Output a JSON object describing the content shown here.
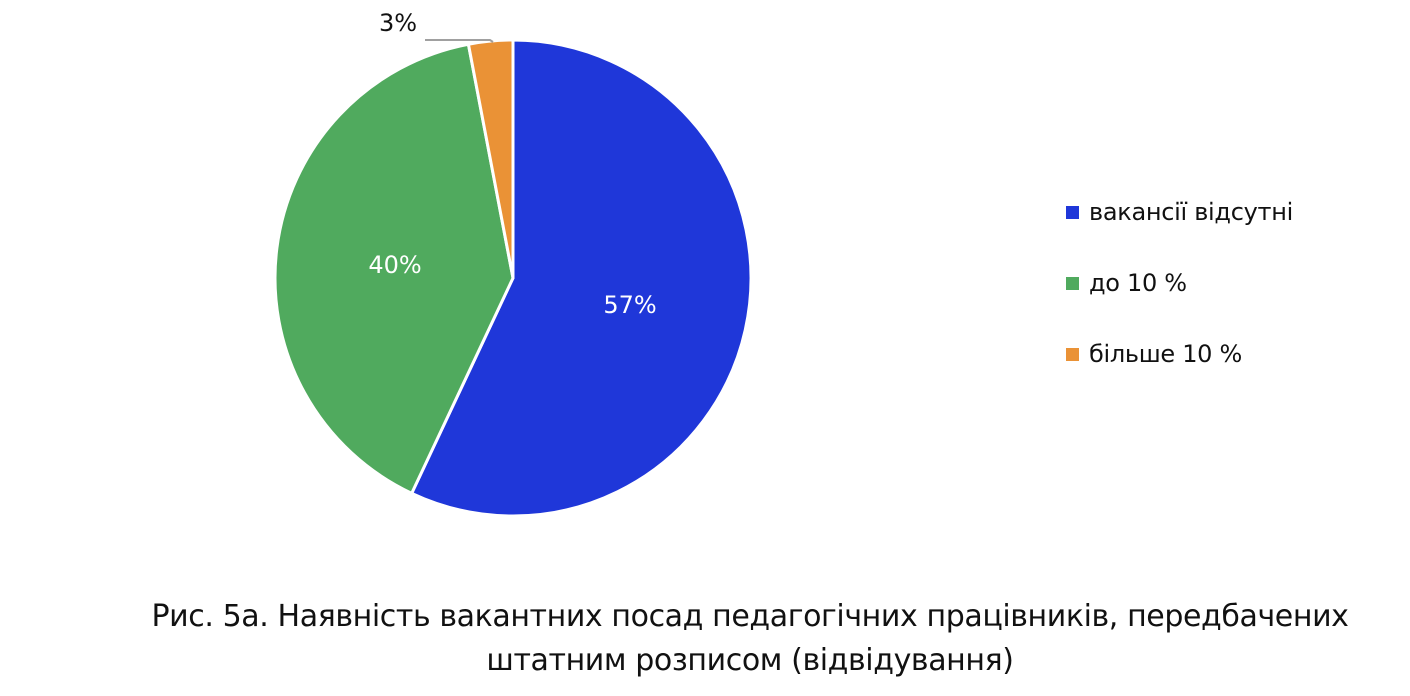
{
  "chart_data": {
    "type": "pie",
    "title": "Рис. 5а. Наявність вакантних посад педагогічних працівників, передбачених штатним розписом (відвідування)",
    "categories": [
      "вакансії відсутні",
      "до 10 %",
      "більше 10 %"
    ],
    "values": [
      57,
      40,
      3
    ],
    "data_labels": [
      "57%",
      "40%",
      "3%"
    ],
    "colors": [
      "#1f37d9",
      "#50aa5e",
      "#ea9236"
    ],
    "start_angle": "12 o'clock, clockwise",
    "legend_position": "right"
  },
  "legend": {
    "items": [
      {
        "label": "вакансії відсутні",
        "color": "#1f37d9"
      },
      {
        "label": "до 10 %",
        "color": "#50aa5e"
      },
      {
        "label": "більше 10 %",
        "color": "#ea9236"
      }
    ]
  },
  "caption": {
    "line1": "Рис. 5а. Наявність вакантних посад педагогічних працівників, передбачених",
    "line2": "штатним розписом (відвідування)"
  }
}
